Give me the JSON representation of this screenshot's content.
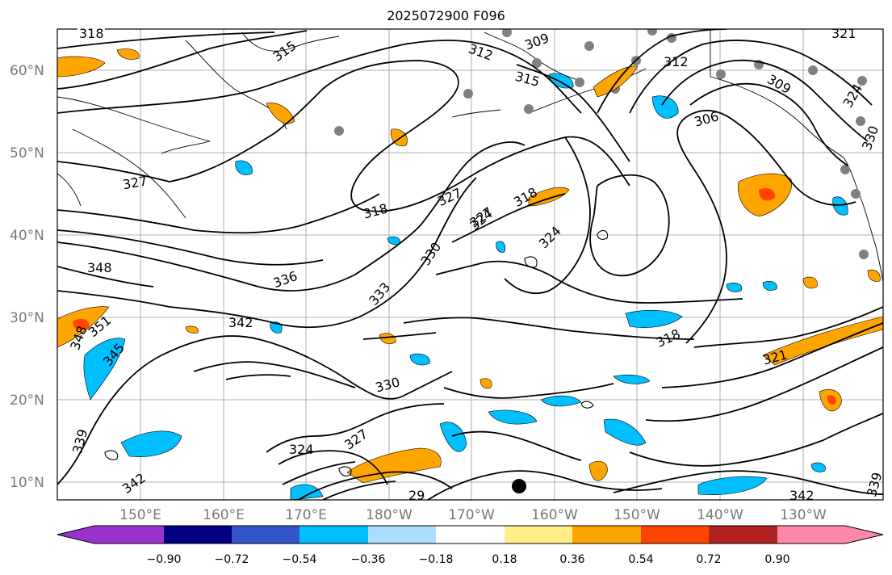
{
  "title": "2025072900 F096",
  "map": {
    "lat_labels": [
      "60°N",
      "50°N",
      "40°N",
      "30°N",
      "20°N",
      "10°N"
    ],
    "lon_labels": [
      "150°E",
      "160°E",
      "170°E",
      "180°W",
      "170°W",
      "160°W",
      "150°W",
      "140°W",
      "130°W"
    ],
    "contour_labels": [
      {
        "text": "318",
        "name": "contour-318-a"
      },
      {
        "text": "315",
        "name": "contour-315-a"
      },
      {
        "text": "309",
        "name": "contour-309"
      },
      {
        "text": "312",
        "name": "contour-312-a"
      },
      {
        "text": "315",
        "name": "contour-315-b"
      },
      {
        "text": "312",
        "name": "contour-312-b"
      },
      {
        "text": "321",
        "name": "contour-321-a"
      },
      {
        "text": "309",
        "name": "contour-309-b"
      },
      {
        "text": "306",
        "name": "contour-306"
      },
      {
        "text": "327",
        "name": "contour-327-a"
      },
      {
        "text": "324",
        "name": "contour-324-a"
      },
      {
        "text": "330",
        "name": "contour-330-a"
      },
      {
        "text": "327",
        "name": "contour-327-b"
      },
      {
        "text": "318",
        "name": "contour-318-b"
      },
      {
        "text": "327",
        "name": "contour-327-c"
      },
      {
        "text": "324",
        "name": "contour-324-b"
      },
      {
        "text": "318",
        "name": "contour-318-c"
      },
      {
        "text": "324",
        "name": "contour-324-c"
      },
      {
        "text": "330",
        "name": "contour-330-b"
      },
      {
        "text": "348",
        "name": "contour-348"
      },
      {
        "text": "336",
        "name": "contour-336"
      },
      {
        "text": "333",
        "name": "contour-333"
      },
      {
        "text": "342",
        "name": "contour-342-a"
      },
      {
        "text": "318",
        "name": "contour-318-d"
      },
      {
        "text": "348",
        "name": "contour-348-b"
      },
      {
        "text": "351",
        "name": "contour-351"
      },
      {
        "text": "345",
        "name": "contour-345"
      },
      {
        "text": "321",
        "name": "contour-321-b"
      },
      {
        "text": "330",
        "name": "contour-330-c"
      },
      {
        "text": "327",
        "name": "contour-327-d"
      },
      {
        "text": "324",
        "name": "contour-324-d"
      },
      {
        "text": "339",
        "name": "contour-339-a"
      },
      {
        "text": "342",
        "name": "contour-342-b"
      },
      {
        "text": "29",
        "name": "contour-329-partial"
      },
      {
        "text": "342",
        "name": "contour-342-c"
      },
      {
        "text": "339",
        "name": "contour-339-b"
      }
    ]
  },
  "colorbar": {
    "colors": [
      "#9933cc",
      "#000080",
      "#3355cc",
      "#00bfff",
      "#aaddff",
      "#ffffff",
      "#ffee88",
      "#ffa500",
      "#ff4400",
      "#b22222",
      "#ff88aa"
    ],
    "tick_labels": [
      "−0.90",
      "−0.72",
      "−0.54",
      "−0.36",
      "−0.18",
      "0.18",
      "0.36",
      "0.54",
      "0.72",
      "0.90"
    ]
  }
}
